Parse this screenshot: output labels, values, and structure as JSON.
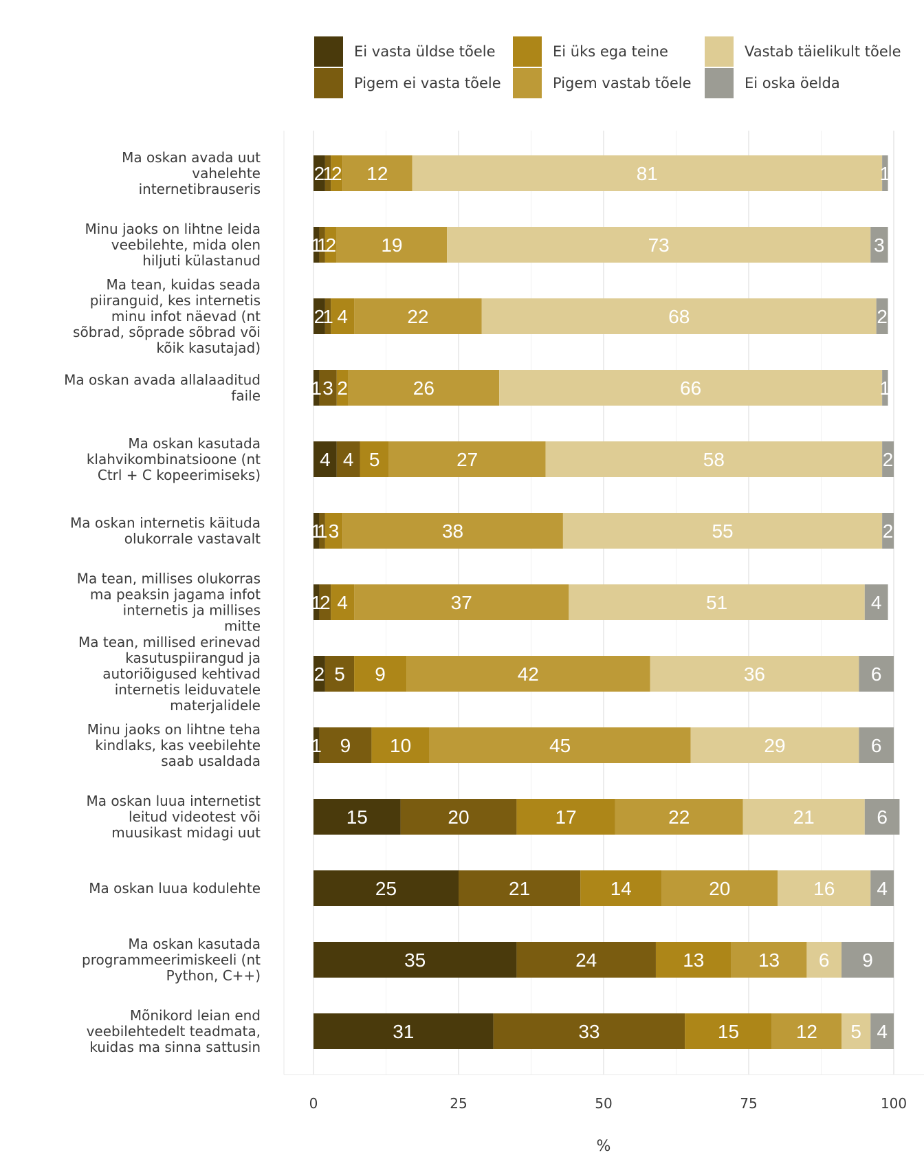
{
  "chart_data": {
    "type": "bar",
    "orientation": "horizontal",
    "stacked": true,
    "xlabel": "%",
    "xlim": [
      0,
      100
    ],
    "xticks": [
      0,
      25,
      50,
      75,
      100
    ],
    "grid": true,
    "legend_position": "top",
    "series": [
      {
        "name": "Ei vasta üldse tõele",
        "color": "#4a3a0c",
        "values": [
          2,
          1,
          2,
          1,
          4,
          1,
          1,
          2,
          1,
          15,
          25,
          35,
          31
        ]
      },
      {
        "name": "Pigem ei vasta tõele",
        "color": "#7a5c10",
        "values": [
          1,
          1,
          1,
          3,
          4,
          1,
          2,
          5,
          9,
          20,
          21,
          24,
          33
        ]
      },
      {
        "name": "Ei üks ega teine",
        "color": "#ad8618",
        "values": [
          2,
          2,
          4,
          2,
          5,
          3,
          4,
          9,
          10,
          17,
          14,
          13,
          15
        ]
      },
      {
        "name": "Pigem vastab tõele",
        "color": "#bd9a37",
        "values": [
          12,
          19,
          22,
          26,
          27,
          38,
          37,
          42,
          45,
          22,
          20,
          13,
          12
        ]
      },
      {
        "name": "Vastab täielikult tõele",
        "color": "#decc94",
        "values": [
          81,
          73,
          68,
          66,
          58,
          55,
          51,
          36,
          29,
          21,
          16,
          6,
          5
        ]
      },
      {
        "name": "Ei oska öelda",
        "color": "#9c9c94",
        "values": [
          1,
          3,
          2,
          1,
          2,
          2,
          4,
          6,
          6,
          6,
          4,
          9,
          4
        ]
      }
    ],
    "categories": [
      [
        "Ma oskan avada uut",
        "vahelehte",
        "internetibrauseris"
      ],
      [
        "Minu jaoks on lihtne leida",
        "veebilehte, mida olen",
        "hiljuti külastanud"
      ],
      [
        "Ma tean, kuidas seada",
        "piiranguid, kes internetis",
        "minu infot näevad (nt",
        "sõbrad, sõprade sõbrad või",
        "kõik kasutajad)"
      ],
      [
        "Ma oskan avada allalaaditud",
        "faile"
      ],
      [
        "Ma oskan kasutada",
        "klahvikombinatsioone (nt",
        "Ctrl + C kopeerimiseks)"
      ],
      [
        "Ma oskan internetis käituda",
        "olukorrale vastavalt"
      ],
      [
        "Ma tean, millises olukorras",
        "ma peaksin jagama infot",
        "internetis ja millises",
        "mitte"
      ],
      [
        "Ma tean, millised erinevad",
        "kasutuspiirangud ja",
        "autoriõigused kehtivad",
        "internetis leiduvatele",
        "materjalidele"
      ],
      [
        "Minu jaoks on lihtne teha",
        "kindlaks, kas veebilehte",
        "saab usaldada"
      ],
      [
        "Ma oskan luua internetist",
        "leitud videotest või",
        "muusikast midagi uut"
      ],
      [
        "Ma oskan luua kodulehte"
      ],
      [
        "Ma oskan kasutada",
        "programmeerimiskeeli (nt",
        "Python, C++)"
      ],
      [
        "Mõnikord leian end",
        "veebilehtedelt teadmata,",
        "kuidas ma sinna sattusin"
      ]
    ]
  }
}
